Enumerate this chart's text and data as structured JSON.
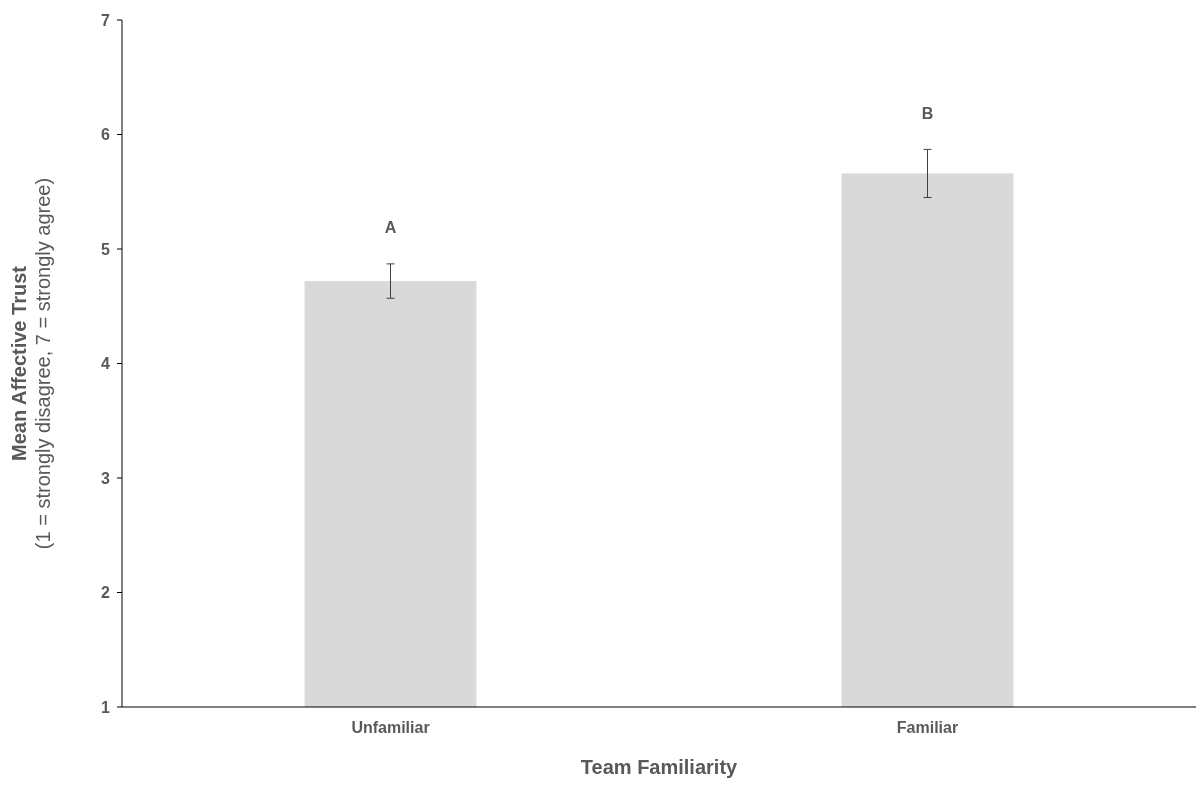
{
  "chart_data": {
    "type": "bar",
    "categories": [
      "Unfamiliar",
      "Familiar"
    ],
    "values": [
      4.72,
      5.66
    ],
    "color": "#d9d9d9",
    "errors": [
      0.15,
      0.21
    ],
    "xlabel": "Team Familiarity",
    "ylabel": "Mean Affective Trust\n(1 = strongly disagree, 7 = strongly agree)",
    "ylim": [
      1,
      7
    ],
    "yticks": [
      1,
      2,
      3,
      4,
      5,
      6,
      7
    ],
    "grid": false,
    "annotations": [
      "A",
      "B"
    ]
  }
}
